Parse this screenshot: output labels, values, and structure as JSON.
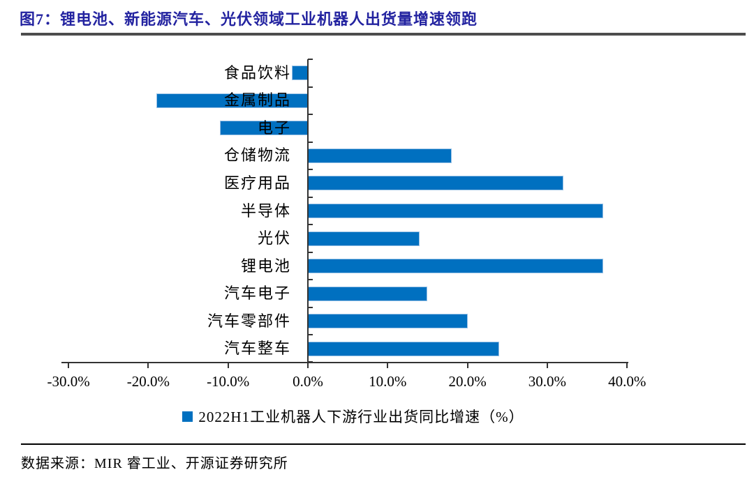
{
  "header": {
    "title": "图7：锂电池、新能源汽车、光伏领域工业机器人出货量增速领跑"
  },
  "chart_data": {
    "type": "bar",
    "orientation": "horizontal",
    "title": "",
    "legend": "2022H1工业机器人下游行业出货同比增速（%）",
    "legend_position": "bottom",
    "categories": [
      "食品饮料",
      "金属制品",
      "电子",
      "仓储物流",
      "医疗用品",
      "半导体",
      "光伏",
      "锂电池",
      "汽车电子",
      "汽车零部件",
      "汽车整车"
    ],
    "values": [
      -2,
      -19,
      -11,
      18,
      32,
      37,
      14,
      37,
      15,
      20,
      24
    ],
    "value_unit": "%",
    "xlim": [
      -30,
      40
    ],
    "x_ticks": [
      {
        "label": "-30.0%",
        "value": -30
      },
      {
        "label": "-20.0%",
        "value": -20
      },
      {
        "label": "-10.0%",
        "value": -10
      },
      {
        "label": "0.0%",
        "value": 0
      },
      {
        "label": "10.0%",
        "value": 10
      },
      {
        "label": "20.0%",
        "value": 20
      },
      {
        "label": "30.0%",
        "value": 30
      },
      {
        "label": "40.0%",
        "value": 40
      }
    ],
    "grid": false,
    "bar_color": "#0070C0",
    "bar_border_color": "#9DC3E6",
    "axis_color": "#333333"
  },
  "footer": {
    "source": "数据来源：MIR 睿工业、开源证券研究所"
  }
}
